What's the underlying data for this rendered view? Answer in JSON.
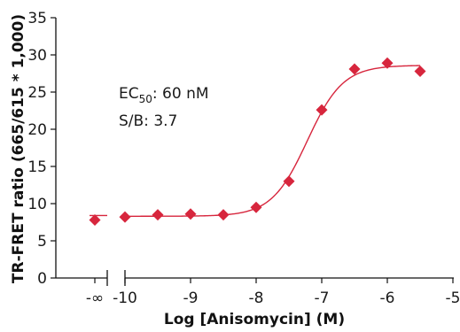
{
  "chart_data": {
    "type": "scatter",
    "title": "",
    "xlabel": "Log [Anisomycin] (M)",
    "ylabel": "TR-FRET ratio (665/615 * 1,000)",
    "xlim": [
      -10.5,
      -5
    ],
    "ylim": [
      0,
      35
    ],
    "grid": false,
    "x_ticks": [
      -10,
      -9,
      -8,
      -7,
      -6,
      -5
    ],
    "x_tick_labels": [
      "-10",
      "-9",
      "-8",
      "-7",
      "-6",
      "-5"
    ],
    "zero_dose_tick_label": "-∞",
    "y_ticks": [
      0,
      5,
      10,
      15,
      20,
      25,
      30,
      35
    ],
    "y_tick_labels": [
      "0",
      "5",
      "10",
      "15",
      "20",
      "25",
      "30",
      "35"
    ],
    "zero_dose_point": {
      "x": "-∞",
      "y": 7.8
    },
    "series": [
      {
        "color": "#d7263d",
        "marker": "diamond",
        "x": [
          -10,
          -9.5,
          -9,
          -8.5,
          -8,
          -7.5,
          -7,
          -6.5,
          -6,
          -5.5
        ],
        "y": [
          8.2,
          8.5,
          8.6,
          8.5,
          9.5,
          13.0,
          22.6,
          28.1,
          28.9,
          27.8
        ]
      }
    ],
    "fit": {
      "bottom": 8.3,
      "top": 28.6,
      "log_ec50": -7.22,
      "hill": 1.6
    },
    "annotations": {
      "ec50_prefix": "EC",
      "ec50_subscript": "50",
      "ec50_value": ": 60 nM",
      "sb": "S/B: 3.7"
    }
  }
}
